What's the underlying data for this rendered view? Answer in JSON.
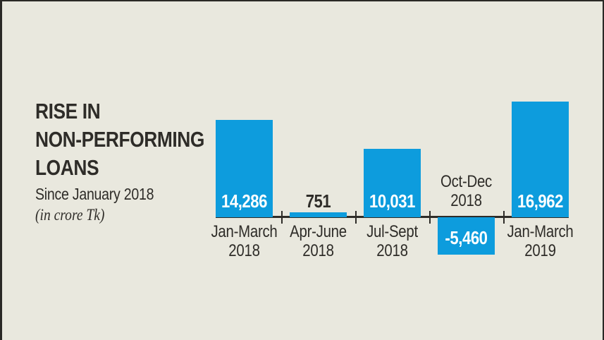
{
  "header": {
    "title_lines": [
      "RISE IN",
      "NON-PERFORMING",
      "LOANS"
    ],
    "subtitle": "Since January 2018",
    "unit_note": "(in crore Tk)"
  },
  "chart_data": {
    "type": "bar",
    "title": "RISE IN NON-PERFORMING LOANS",
    "subtitle": "Since January 2018",
    "unit": "in crore Tk",
    "categories": [
      "Jan-March 2018",
      "Apr-June 2018",
      "Jul-Sept 2018",
      "Oct-Dec 2018",
      "Jan-March 2019"
    ],
    "category_label_lines": [
      [
        "Jan-March",
        "2018"
      ],
      [
        "Apr-June",
        "2018"
      ],
      [
        "Jul-Sept",
        "2018"
      ],
      [
        "Oct-Dec",
        "2018"
      ],
      [
        "Jan-March",
        "2019"
      ]
    ],
    "values": [
      14286,
      751,
      10031,
      -5460,
      16962
    ],
    "value_labels": [
      "14,286",
      "751",
      "10,031",
      "-5,460",
      "16,962"
    ],
    "ylim": [
      -5460,
      16962
    ],
    "xlabel": "",
    "ylabel": "",
    "grid": false,
    "legend": false,
    "colors": {
      "bar": "#0d9cdd",
      "background": "#e9e8de",
      "text": "#2e2c28",
      "axis": "#2e2c28",
      "value_inside_bar": "#ffffff"
    }
  }
}
